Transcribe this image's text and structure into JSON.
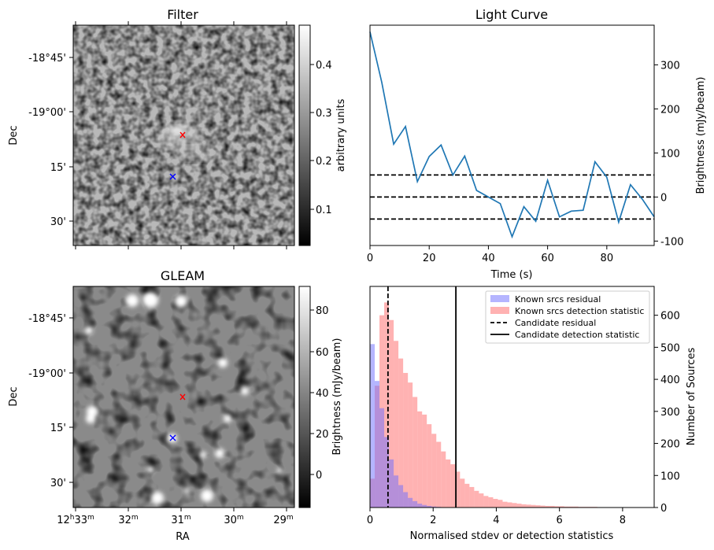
{
  "colors": {
    "line": "#1f77b4",
    "known_residual": "#6b6bff",
    "known_detection": "#ff7f7f",
    "red_marker": "#ff0000",
    "blue_marker": "#0000ff"
  },
  "panels": {
    "filter": {
      "title": "Filter",
      "ylabel": "Dec",
      "yticks": [
        "-18°45'",
        "-19°00'",
        "15'",
        "30'"
      ],
      "colorbar": {
        "label": "arbitrary units",
        "ticks": [
          "0.4",
          "0.3",
          "0.2",
          "0.1"
        ],
        "range": [
          0.03,
          0.47
        ]
      }
    },
    "gleam": {
      "title": "GLEAM",
      "ylabel": "Dec",
      "xlabel": "RA",
      "yticks": [
        "-18°45'",
        "-19°00'",
        "15'",
        "30'"
      ],
      "xticks": [
        {
          "main": "12",
          "sup1": "h",
          "min": "33",
          "sup2": "m"
        },
        {
          "main": "",
          "sup1": "",
          "min": "32",
          "sup2": "m"
        },
        {
          "main": "",
          "sup1": "",
          "min": "31",
          "sup2": "m"
        },
        {
          "main": "",
          "sup1": "",
          "min": "30",
          "sup2": "m"
        },
        {
          "main": "",
          "sup1": "",
          "min": "29",
          "sup2": "m"
        }
      ],
      "colorbar": {
        "label": "Brightness (mJy/beam)",
        "ticks": [
          "80",
          "60",
          "40",
          "20",
          "0"
        ],
        "range": [
          -15,
          90
        ]
      }
    }
  },
  "chart_data": [
    {
      "type": "line",
      "title": "Light Curve",
      "xlabel": "Time (s)",
      "ylabel": "Brightness (mJy/beam)",
      "xlim": [
        0,
        96
      ],
      "ylim": [
        -110,
        390
      ],
      "xticks": [
        0,
        20,
        40,
        60,
        80
      ],
      "yticks": [
        -100,
        0,
        100,
        200,
        300
      ],
      "x": [
        0,
        4,
        8,
        12,
        16,
        20,
        24,
        28,
        32,
        36,
        40,
        44,
        48,
        52,
        56,
        60,
        64,
        68,
        72,
        76,
        80,
        84,
        88,
        92,
        96
      ],
      "y": [
        375,
        260,
        120,
        160,
        35,
        92,
        118,
        50,
        93,
        15,
        0,
        -15,
        -90,
        -22,
        -55,
        38,
        -45,
        -32,
        -30,
        80,
        45,
        -57,
        28,
        -5,
        -45
      ],
      "hlines": [
        -50,
        0,
        50
      ],
      "grid": false
    },
    {
      "type": "bar",
      "xlabel": "Normalised stdev or detection statistics",
      "ylabel": "Number of Sources",
      "xlim": [
        0,
        9
      ],
      "ylim": [
        0,
        690
      ],
      "xticks": [
        0,
        2,
        4,
        6,
        8
      ],
      "yticks": [
        0,
        100,
        200,
        300,
        400,
        500,
        600
      ],
      "bin_width": 0.15,
      "series": [
        {
          "name": "Known srcs residual",
          "values": [
            510,
            395,
            310,
            220,
            150,
            100,
            70,
            48,
            30,
            20,
            12,
            8,
            5,
            3,
            2,
            1
          ]
        },
        {
          "name": "Known srcs detection statistic",
          "values": [
            90,
            380,
            600,
            640,
            585,
            520,
            465,
            420,
            390,
            345,
            300,
            290,
            260,
            230,
            205,
            175,
            150,
            135,
            112,
            90,
            74,
            64,
            52,
            44,
            36,
            32,
            27,
            24,
            18,
            16,
            14,
            12,
            10,
            9,
            8,
            7,
            6,
            5,
            5,
            4,
            4,
            3,
            3,
            3,
            2,
            2,
            2,
            2,
            1,
            1,
            1,
            1,
            1,
            1,
            1,
            1,
            1,
            1,
            1,
            1
          ]
        }
      ],
      "vlines": [
        {
          "name": "Candidate residual",
          "x": 0.57,
          "style": "dashed"
        },
        {
          "name": "Candidate detection statistic",
          "x": 2.72,
          "style": "solid"
        }
      ],
      "legend_placement": "top-right"
    }
  ]
}
